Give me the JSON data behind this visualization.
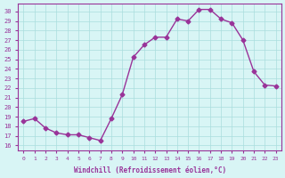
{
  "x": [
    0,
    1,
    2,
    3,
    4,
    5,
    6,
    7,
    8,
    9,
    10,
    11,
    12,
    13,
    14,
    15,
    16,
    17,
    18,
    19,
    20,
    21,
    22,
    23
  ],
  "y": [
    18.5,
    18.8,
    17.8,
    17.3,
    17.1,
    17.1,
    16.8,
    16.5,
    18.8,
    21.3,
    25.2,
    26.5,
    27.3,
    27.3,
    29.2,
    29.0,
    30.2,
    30.2,
    29.2,
    28.8,
    27.0,
    23.7,
    22.3,
    22.2
  ],
  "line_color": "#993399",
  "marker": "D",
  "marker_size": 2.5,
  "bg_color": "#d8f5f5",
  "grid_color": "#aadddd",
  "xlabel": "Windchill (Refroidissement éolien,°C)",
  "ylabel_ticks": [
    16,
    17,
    18,
    19,
    20,
    21,
    22,
    23,
    24,
    25,
    26,
    27,
    28,
    29,
    30
  ],
  "xlim": [
    -0.5,
    23.5
  ],
  "ylim": [
    15.5,
    30.8
  ],
  "xticks": [
    0,
    1,
    2,
    3,
    4,
    5,
    6,
    7,
    8,
    9,
    10,
    11,
    12,
    13,
    14,
    15,
    16,
    17,
    18,
    19,
    20,
    21,
    22,
    23
  ],
  "axis_label_color": "#993399",
  "tick_color": "#993399"
}
